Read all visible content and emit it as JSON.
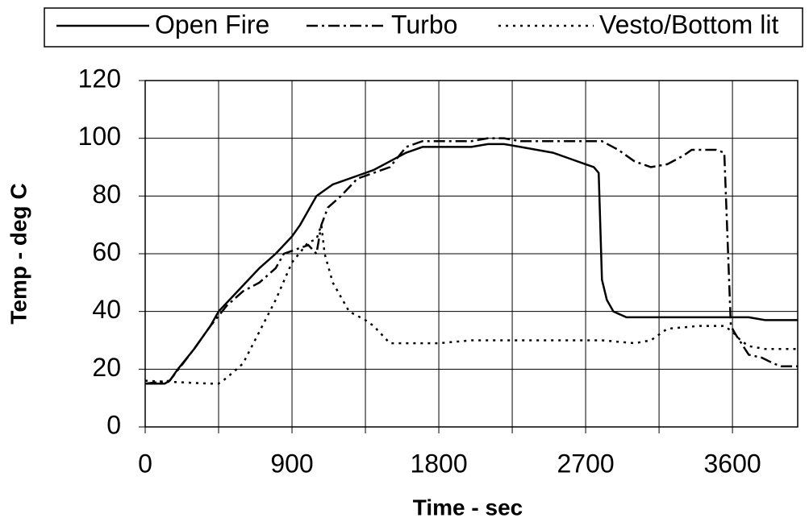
{
  "chart_data": {
    "type": "line",
    "x_label": "Time - sec",
    "y_label": "Temp - deg C",
    "xlim": [
      0,
      4000
    ],
    "xticks": [
      0,
      900,
      1800,
      2700,
      3600
    ],
    "x_minor_grid": [
      450,
      1350,
      2250,
      3150
    ],
    "ylim": [
      0,
      120
    ],
    "yticks": [
      0,
      20,
      40,
      60,
      80,
      100,
      120
    ],
    "grid": true,
    "legend": "top",
    "series": [
      {
        "name": "Open Fire",
        "color": "#000000",
        "dash": "solid",
        "x": [
          0,
          120,
          150,
          200,
          300,
          400,
          450,
          500,
          600,
          700,
          800,
          850,
          900,
          950,
          1000,
          1050,
          1100,
          1150,
          1200,
          1300,
          1400,
          1500,
          1600,
          1700,
          1800,
          1900,
          2000,
          2100,
          2200,
          2300,
          2400,
          2500,
          2600,
          2700,
          2750,
          2780,
          2800,
          2830,
          2870,
          2950,
          3000,
          3600,
          3700,
          3800,
          3900,
          4000
        ],
        "values": [
          15,
          15,
          16,
          20,
          27,
          35,
          40,
          43,
          49,
          55,
          60,
          63,
          66,
          70,
          75,
          80,
          82,
          84,
          85,
          87,
          89,
          92,
          95,
          97,
          97,
          97,
          97,
          98,
          98,
          97,
          96,
          95,
          93,
          91,
          90,
          88,
          51,
          44,
          40,
          38,
          38,
          38,
          38,
          37,
          37,
          37
        ]
      },
      {
        "name": "Turbo",
        "color": "#000000",
        "dash": "dashdot",
        "x": [
          0,
          150,
          300,
          400,
          500,
          600,
          700,
          800,
          850,
          900,
          1000,
          1050,
          1080,
          1120,
          1200,
          1300,
          1400,
          1500,
          1600,
          1700,
          1800,
          1900,
          2000,
          2100,
          2200,
          2300,
          2700,
          2800,
          2900,
          3000,
          3100,
          3200,
          3300,
          3350,
          3500,
          3550,
          3590,
          3620,
          3700,
          3780,
          3850,
          3900,
          4000
        ],
        "values": [
          15,
          16,
          27,
          35,
          42,
          47,
          50,
          55,
          60,
          61,
          63,
          60,
          70,
          76,
          80,
          86,
          88,
          90,
          97,
          99,
          99,
          99,
          99,
          100,
          100,
          99,
          99,
          99,
          96,
          92,
          90,
          91,
          94,
          96,
          96,
          95,
          35,
          32,
          25,
          24,
          22,
          21,
          21
        ]
      },
      {
        "name": "Vesto/Bottom lit",
        "color": "#000000",
        "dash": "dotted",
        "x": [
          0,
          400,
          450,
          500,
          600,
          700,
          800,
          900,
          1000,
          1050,
          1080,
          1100,
          1150,
          1250,
          1350,
          1400,
          1500,
          1800,
          2000,
          2200,
          2600,
          2800,
          3000,
          3100,
          3200,
          3400,
          3550,
          3600,
          3650,
          3700,
          3800,
          4000
        ],
        "values": [
          16,
          15,
          15,
          17,
          22,
          33,
          44,
          57,
          64,
          65,
          70,
          60,
          50,
          40,
          37,
          35,
          29,
          29,
          30,
          30,
          30,
          30,
          29,
          30,
          34,
          35,
          35,
          33,
          30,
          28,
          27,
          27
        ]
      }
    ]
  }
}
